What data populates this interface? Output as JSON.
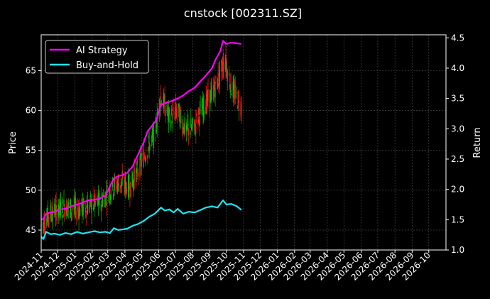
{
  "chart_data": {
    "type": "line",
    "title": "cnstock [002311.SZ]",
    "ylabel_left": "Price",
    "ylabel_right": "Return",
    "x_tick_labels": [
      "2024-11",
      "2024-12",
      "2025-01",
      "2025-02",
      "2025-03",
      "2025-04",
      "2025-05",
      "2025-06",
      "2025-07",
      "2025-08",
      "2025-09",
      "2025-10",
      "2025-11",
      "2025-12",
      "2026-01",
      "2026-02",
      "2026-03",
      "2026-04",
      "2026-05",
      "2026-06",
      "2026-07",
      "2026-08",
      "2026-09",
      "2026-10"
    ],
    "x_range": [
      "2024-11-01",
      "2026-11-01"
    ],
    "y_left_range": [
      42.5,
      69.5
    ],
    "y_left_ticks": [
      45,
      50,
      55,
      60,
      65
    ],
    "y_right_range": [
      1.0,
      4.55
    ],
    "y_right_ticks": [
      "1.0",
      "1.5",
      "2.0",
      "2.5",
      "3.0",
      "3.5",
      "4.0",
      "4.5"
    ],
    "grid": true,
    "legend_position": "top-left",
    "series": [
      {
        "name": "AI Strategy",
        "color": "#ff00ff",
        "axis": "right",
        "points": [
          [
            "2024-11-01",
            1.5
          ],
          [
            "2024-11-06",
            1.52
          ],
          [
            "2024-11-10",
            1.6
          ],
          [
            "2024-11-18",
            1.62
          ],
          [
            "2024-11-25",
            1.63
          ],
          [
            "2024-12-05",
            1.67
          ],
          [
            "2024-12-15",
            1.68
          ],
          [
            "2024-12-25",
            1.72
          ],
          [
            "2025-01-05",
            1.75
          ],
          [
            "2025-01-15",
            1.78
          ],
          [
            "2025-01-25",
            1.82
          ],
          [
            "2025-02-05",
            1.83
          ],
          [
            "2025-02-15",
            1.85
          ],
          [
            "2025-02-25",
            1.9
          ],
          [
            "2025-03-05",
            2.05
          ],
          [
            "2025-03-12",
            2.18
          ],
          [
            "2025-03-20",
            2.22
          ],
          [
            "2025-03-28",
            2.24
          ],
          [
            "2025-04-05",
            2.27
          ],
          [
            "2025-04-15",
            2.38
          ],
          [
            "2025-04-25",
            2.58
          ],
          [
            "2025-05-05",
            2.78
          ],
          [
            "2025-05-12",
            2.96
          ],
          [
            "2025-05-20",
            3.05
          ],
          [
            "2025-05-28",
            3.15
          ],
          [
            "2025-06-05",
            3.4
          ],
          [
            "2025-06-15",
            3.43
          ],
          [
            "2025-06-25",
            3.46
          ],
          [
            "2025-07-05",
            3.5
          ],
          [
            "2025-07-15",
            3.55
          ],
          [
            "2025-07-25",
            3.62
          ],
          [
            "2025-08-05",
            3.68
          ],
          [
            "2025-08-15",
            3.78
          ],
          [
            "2025-08-25",
            3.88
          ],
          [
            "2025-09-05",
            4.0
          ],
          [
            "2025-09-12",
            4.15
          ],
          [
            "2025-09-20",
            4.28
          ],
          [
            "2025-09-25",
            4.45
          ],
          [
            "2025-10-01",
            4.4
          ],
          [
            "2025-10-10",
            4.42
          ],
          [
            "2025-10-20",
            4.41
          ],
          [
            "2025-10-28",
            4.4
          ]
        ]
      },
      {
        "name": "Buy-and-Hold",
        "color": "#19e6f0",
        "axis": "right",
        "points": [
          [
            "2024-11-01",
            1.22
          ],
          [
            "2024-11-05",
            1.18
          ],
          [
            "2024-11-10",
            1.3
          ],
          [
            "2024-11-18",
            1.26
          ],
          [
            "2024-11-25",
            1.27
          ],
          [
            "2024-12-05",
            1.25
          ],
          [
            "2024-12-15",
            1.28
          ],
          [
            "2024-12-25",
            1.26
          ],
          [
            "2025-01-05",
            1.3
          ],
          [
            "2025-01-15",
            1.27
          ],
          [
            "2025-01-25",
            1.29
          ],
          [
            "2025-02-05",
            1.31
          ],
          [
            "2025-02-15",
            1.29
          ],
          [
            "2025-02-25",
            1.3
          ],
          [
            "2025-03-05",
            1.28
          ],
          [
            "2025-03-12",
            1.36
          ],
          [
            "2025-03-20",
            1.33
          ],
          [
            "2025-03-28",
            1.34
          ],
          [
            "2025-04-05",
            1.35
          ],
          [
            "2025-04-15",
            1.4
          ],
          [
            "2025-04-25",
            1.43
          ],
          [
            "2025-05-05",
            1.48
          ],
          [
            "2025-05-15",
            1.55
          ],
          [
            "2025-05-25",
            1.6
          ],
          [
            "2025-06-05",
            1.7
          ],
          [
            "2025-06-12",
            1.65
          ],
          [
            "2025-06-20",
            1.67
          ],
          [
            "2025-06-28",
            1.62
          ],
          [
            "2025-07-05",
            1.68
          ],
          [
            "2025-07-15",
            1.6
          ],
          [
            "2025-07-25",
            1.63
          ],
          [
            "2025-08-05",
            1.62
          ],
          [
            "2025-08-15",
            1.66
          ],
          [
            "2025-08-25",
            1.7
          ],
          [
            "2025-09-05",
            1.72
          ],
          [
            "2025-09-15",
            1.7
          ],
          [
            "2025-09-25",
            1.82
          ],
          [
            "2025-10-01",
            1.75
          ],
          [
            "2025-10-10",
            1.76
          ],
          [
            "2025-10-20",
            1.72
          ],
          [
            "2025-10-28",
            1.66
          ]
        ]
      }
    ],
    "candles": {
      "axis": "left",
      "up_color": "#00c000",
      "down_color": "#ff1a1a",
      "trend_points": [
        [
          "2024-11-01",
          45.5
        ],
        [
          "2024-11-15",
          47.0
        ],
        [
          "2024-11-28",
          47.5
        ],
        [
          "2024-12-15",
          48.0
        ],
        [
          "2025-01-05",
          47.5
        ],
        [
          "2025-01-25",
          48.0
        ],
        [
          "2025-02-15",
          48.5
        ],
        [
          "2025-03-05",
          50.0
        ],
        [
          "2025-03-20",
          51.0
        ],
        [
          "2025-04-10",
          50.5
        ],
        [
          "2025-04-25",
          52.5
        ],
        [
          "2025-05-10",
          55.0
        ],
        [
          "2025-05-25",
          57.0
        ],
        [
          "2025-06-05",
          62.0
        ],
        [
          "2025-06-20",
          59.0
        ],
        [
          "2025-07-05",
          60.0
        ],
        [
          "2025-07-20",
          57.5
        ],
        [
          "2025-08-05",
          58.0
        ],
        [
          "2025-08-20",
          60.5
        ],
        [
          "2025-09-05",
          62.0
        ],
        [
          "2025-09-20",
          64.5
        ],
        [
          "2025-09-28",
          66.5
        ],
        [
          "2025-10-10",
          63.0
        ],
        [
          "2025-10-28",
          60.5
        ]
      ]
    }
  }
}
